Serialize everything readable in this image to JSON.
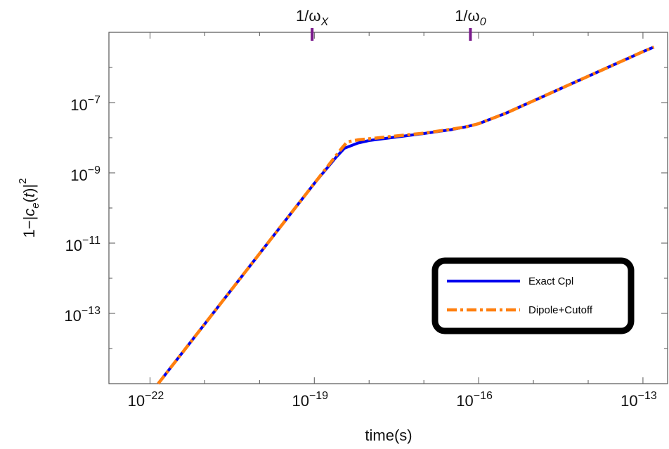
{
  "chart_data": {
    "type": "line",
    "xlabel": "time(s)",
    "ylabel_parts": {
      "prefix": "1−|",
      "c": "c",
      "sub": "e",
      "arg": "(",
      "t": "t",
      "close": ")|",
      "sup": "2"
    },
    "x_scale": "log",
    "y_scale": "log",
    "xlim_exp": [
      -22.75,
      -12.55
    ],
    "ylim_exp": [
      -15,
      -5
    ],
    "x_ticks": [
      {
        "exp": -22,
        "label": "10",
        "sup": "−22"
      },
      {
        "exp": -19,
        "label": "10",
        "sup": "−19"
      },
      {
        "exp": -16,
        "label": "10",
        "sup": "−16"
      },
      {
        "exp": -13,
        "label": "10",
        "sup": "−13"
      }
    ],
    "y_ticks": [
      {
        "exp": -7,
        "label": "10",
        "sup": "−7"
      },
      {
        "exp": -9,
        "label": "10",
        "sup": "−9"
      },
      {
        "exp": -11,
        "label": "10",
        "sup": "−11"
      },
      {
        "exp": -13,
        "label": "10",
        "sup": "−13"
      }
    ],
    "top_markers": [
      {
        "x_exp": -19.04,
        "label_prefix": "1/ω",
        "label_sub": "X"
      },
      {
        "x_exp": -16.15,
        "label_prefix": "1/ω",
        "label_sub": "0"
      }
    ],
    "series": [
      {
        "name": "Exact Cpl",
        "color": "#0000ee",
        "style": "solid",
        "points_log": [
          [
            -21.85,
            -15.0
          ],
          [
            -21.0,
            -13.3
          ],
          [
            -20.0,
            -11.3
          ],
          [
            -19.0,
            -9.3
          ],
          [
            -18.6,
            -8.55
          ],
          [
            -18.45,
            -8.3
          ],
          [
            -18.2,
            -8.15
          ],
          [
            -18.0,
            -8.08
          ],
          [
            -17.5,
            -7.98
          ],
          [
            -17.0,
            -7.88
          ],
          [
            -16.5,
            -7.77
          ],
          [
            -16.2,
            -7.68
          ],
          [
            -16.0,
            -7.6
          ],
          [
            -15.5,
            -7.3
          ],
          [
            -15.0,
            -6.95
          ],
          [
            -14.5,
            -6.6
          ],
          [
            -14.0,
            -6.25
          ],
          [
            -13.5,
            -5.9
          ],
          [
            -13.0,
            -5.55
          ],
          [
            -12.8,
            -5.42
          ]
        ]
      },
      {
        "name": "Dipole+Cutoff",
        "color": "#ff7f0e",
        "style": "dashdot",
        "points_log": [
          [
            -21.85,
            -15.0
          ],
          [
            -21.0,
            -13.3
          ],
          [
            -20.0,
            -11.3
          ],
          [
            -19.0,
            -9.3
          ],
          [
            -18.7,
            -8.7
          ],
          [
            -18.5,
            -8.3
          ],
          [
            -18.4,
            -8.12
          ],
          [
            -18.2,
            -8.06
          ],
          [
            -18.0,
            -8.03
          ],
          [
            -17.5,
            -7.95
          ],
          [
            -17.0,
            -7.87
          ],
          [
            -16.5,
            -7.76
          ],
          [
            -16.2,
            -7.68
          ],
          [
            -16.0,
            -7.6
          ],
          [
            -15.5,
            -7.3
          ],
          [
            -15.0,
            -6.95
          ],
          [
            -14.5,
            -6.6
          ],
          [
            -14.0,
            -6.25
          ],
          [
            -13.5,
            -5.9
          ],
          [
            -13.0,
            -5.55
          ],
          [
            -12.8,
            -5.42
          ]
        ]
      }
    ],
    "legend": {
      "position": "bottom-right"
    },
    "colors": {
      "marker": "#7a1a8c",
      "frame": "#555555"
    }
  }
}
